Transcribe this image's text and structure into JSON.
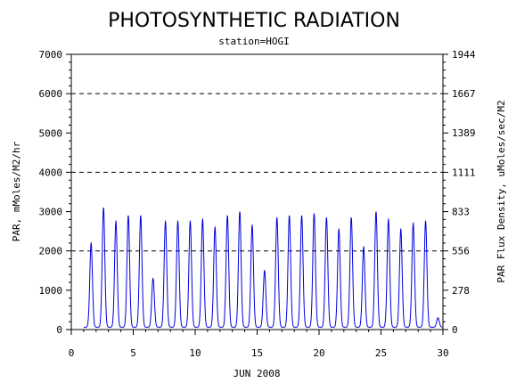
{
  "chart_data": {
    "type": "line",
    "title": "PHOTOSYNTHETIC RADIATION",
    "subtitle": "station=HOGI",
    "xlabel": "JUN 2008",
    "ylabel_left": "PAR, mMoles/M2/hr",
    "ylabel_right": "PAR Flux Density, uMoles/sec/M2",
    "xlim": [
      0,
      30
    ],
    "ylim_left": [
      0,
      7000
    ],
    "ylim_right": [
      0,
      1944
    ],
    "x_ticks": [
      "0",
      "5",
      "10",
      "15",
      "20",
      "25",
      "30"
    ],
    "x_tick_values": [
      0,
      5,
      10,
      15,
      20,
      25,
      30
    ],
    "y_left_ticks": [
      "0",
      "1000",
      "2000",
      "3000",
      "4000",
      "5000",
      "6000",
      "7000"
    ],
    "y_left_tick_values": [
      0,
      1000,
      2000,
      3000,
      4000,
      5000,
      6000,
      7000
    ],
    "y_right_ticks": [
      "0",
      "278",
      "556",
      "833",
      "1111",
      "1389",
      "1667",
      "1944"
    ],
    "y_right_tick_values": [
      0,
      278,
      556,
      833,
      1111,
      1389,
      1667,
      1944
    ],
    "reference_lines": [
      2000,
      4000,
      6000
    ],
    "grid": false,
    "line_color": "#0000dd",
    "series": [
      {
        "name": "",
        "daily_peaks": [
          {
            "day": 1.6,
            "value": 2200
          },
          {
            "day": 2.6,
            "value": 3100
          },
          {
            "day": 3.6,
            "value": 2750
          },
          {
            "day": 4.6,
            "value": 2900
          },
          {
            "day": 5.6,
            "value": 2900
          },
          {
            "day": 6.6,
            "value": 1300
          },
          {
            "day": 7.6,
            "value": 2750
          },
          {
            "day": 8.6,
            "value": 2750
          },
          {
            "day": 9.6,
            "value": 2750
          },
          {
            "day": 10.6,
            "value": 2800
          },
          {
            "day": 11.6,
            "value": 2600
          },
          {
            "day": 12.6,
            "value": 2900
          },
          {
            "day": 13.6,
            "value": 3000
          },
          {
            "day": 14.6,
            "value": 2650
          },
          {
            "day": 15.6,
            "value": 1500
          },
          {
            "day": 16.6,
            "value": 2850
          },
          {
            "day": 17.6,
            "value": 2900
          },
          {
            "day": 18.6,
            "value": 2900
          },
          {
            "day": 19.6,
            "value": 2950
          },
          {
            "day": 20.6,
            "value": 2850
          },
          {
            "day": 21.6,
            "value": 2550
          },
          {
            "day": 22.6,
            "value": 2850
          },
          {
            "day": 23.6,
            "value": 2100
          },
          {
            "day": 24.6,
            "value": 3000
          },
          {
            "day": 25.6,
            "value": 2800
          },
          {
            "day": 26.6,
            "value": 2550
          },
          {
            "day": 27.6,
            "value": 2700
          },
          {
            "day": 28.6,
            "value": 2750
          },
          {
            "day": 29.6,
            "value": 300
          }
        ]
      }
    ]
  }
}
